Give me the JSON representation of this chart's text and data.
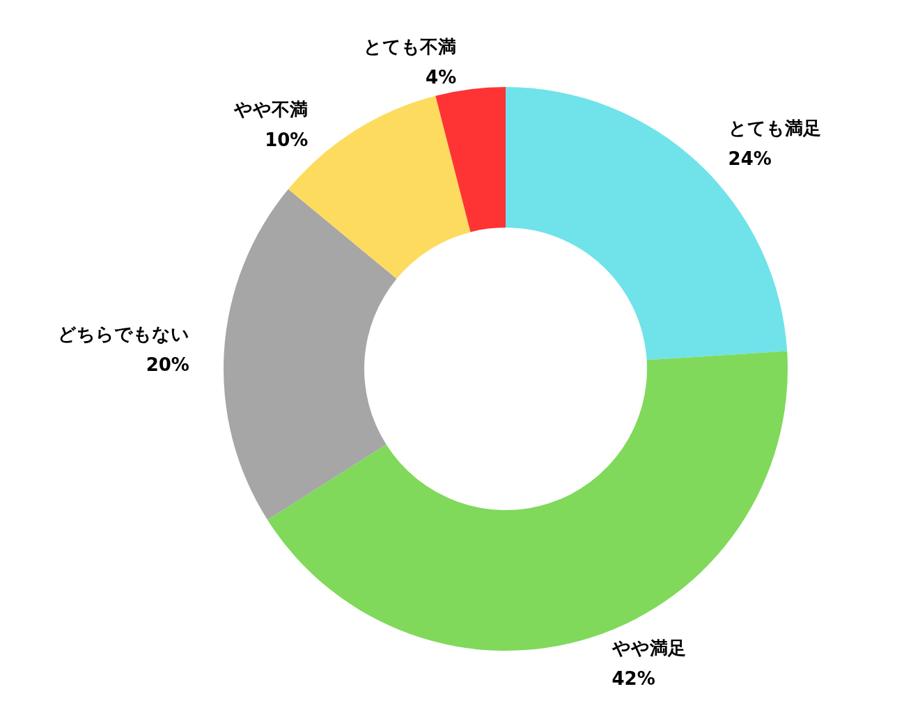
{
  "chart_data": {
    "type": "donut",
    "categories": [
      "とても満足",
      "やや満足",
      "どちらでもない",
      "やや不満",
      "とても不満"
    ],
    "values": [
      24,
      42,
      20,
      10,
      4
    ],
    "value_labels": [
      "24%",
      "42%",
      "20%",
      "10%",
      "4%"
    ],
    "colors": [
      "#6fe3e9",
      "#80d95a",
      "#a6a6a6",
      "#fddb5e",
      "#fe3434"
    ],
    "legend": false
  }
}
